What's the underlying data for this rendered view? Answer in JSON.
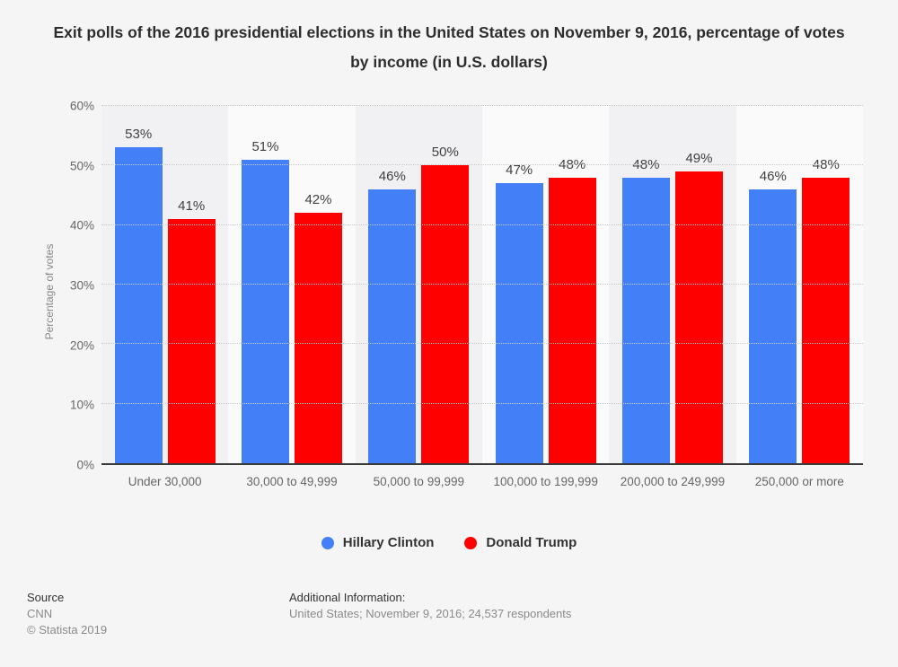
{
  "title": "Exit polls of the 2016 presidential elections in the United States on November 9, 2016, percentage of votes by income (in U.S. dollars)",
  "chart_data": {
    "type": "bar",
    "categories": [
      "Under 30,000",
      "30,000 to 49,999",
      "50,000 to 99,999",
      "100,000 to 199,999",
      "200,000 to 249,999",
      "250,000 or more"
    ],
    "series": [
      {
        "name": "Hillary Clinton",
        "color": "#437ff7",
        "values": [
          53,
          51,
          46,
          47,
          48,
          46
        ]
      },
      {
        "name": "Donald Trump",
        "color": "#ff0000",
        "values": [
          41,
          42,
          50,
          48,
          49,
          48
        ]
      }
    ],
    "value_suffix": "%",
    "title": "Exit polls of the 2016 presidential elections in the United States on November 9, 2016, percentage of votes by income (in U.S. dollars)",
    "xlabel": "",
    "ylabel": "Percentage of votes",
    "ylim": [
      0,
      60
    ],
    "ytick_step": 10,
    "yticks": [
      "0%",
      "10%",
      "20%",
      "30%",
      "40%",
      "50%",
      "60%"
    ],
    "grid": "dotted horizontal",
    "legend_position": "bottom",
    "plot_band_alternating": true
  },
  "footer": {
    "source_heading": "Source",
    "source_name": "CNN",
    "copyright": "© Statista 2019",
    "additional_heading": "Additional Information:",
    "additional_text": "United States; November 9, 2016; 24,537 respondents"
  }
}
